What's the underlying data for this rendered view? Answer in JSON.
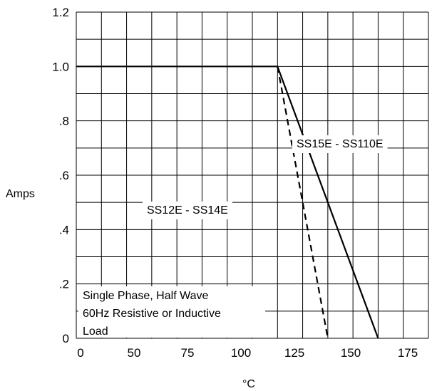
{
  "chart_data": {
    "type": "line",
    "title": "",
    "xlabel": "°C",
    "ylabel": "Amps",
    "xlim": [
      0,
      175
    ],
    "ylim": [
      0,
      1.2
    ],
    "x_ticks": [
      "0",
      "50",
      "75",
      "100",
      "125",
      "150",
      "175"
    ],
    "y_ticks": [
      "0",
      ".2",
      ".4",
      ".6",
      ".8",
      "1.0",
      "1.2"
    ],
    "grid": true,
    "series": [
      {
        "name": "SS15E - SS110E",
        "style": "solid",
        "points": [
          [
            0,
            1.0
          ],
          [
            100,
            1.0
          ],
          [
            150,
            0
          ]
        ]
      },
      {
        "name": "SS12E - SS14E",
        "style": "dashed",
        "points": [
          [
            100,
            1.0
          ],
          [
            125,
            0
          ]
        ]
      }
    ],
    "annotation_lines": [
      "Single Phase, Half Wave",
      "60Hz Resistive or Inductive",
      "Load"
    ]
  }
}
